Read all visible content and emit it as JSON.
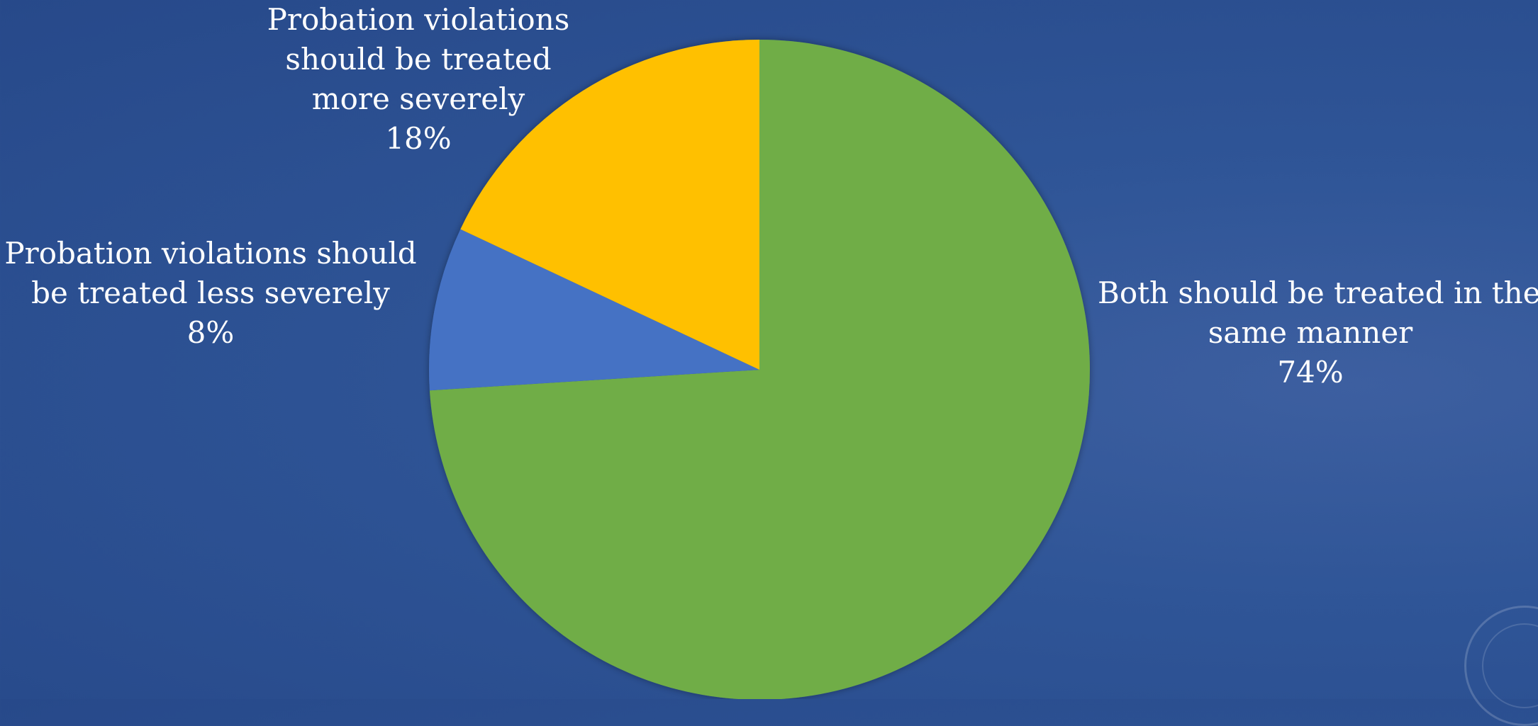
{
  "chart_data": {
    "type": "pie",
    "slices": [
      {
        "label_lines": [
          "Both should be treated in the",
          "same manner"
        ],
        "pct_text": "74%",
        "value": 74,
        "color": "#70ad47"
      },
      {
        "label_lines": [
          "Probation violations should",
          "be treated less severely"
        ],
        "pct_text": "8%",
        "value": 8,
        "color": "#4472c4"
      },
      {
        "label_lines": [
          "Probation violations",
          "should be treated",
          "more severely"
        ],
        "pct_text": "18%",
        "value": 18,
        "color": "#ffc000"
      }
    ],
    "start_angle_deg": 0,
    "direction": "clockwise",
    "legend": "none",
    "data_labels": "category name and percentage, outside"
  },
  "background": {
    "color": "#2f5597"
  },
  "seal": {
    "icon": "senate-seal-icon"
  }
}
